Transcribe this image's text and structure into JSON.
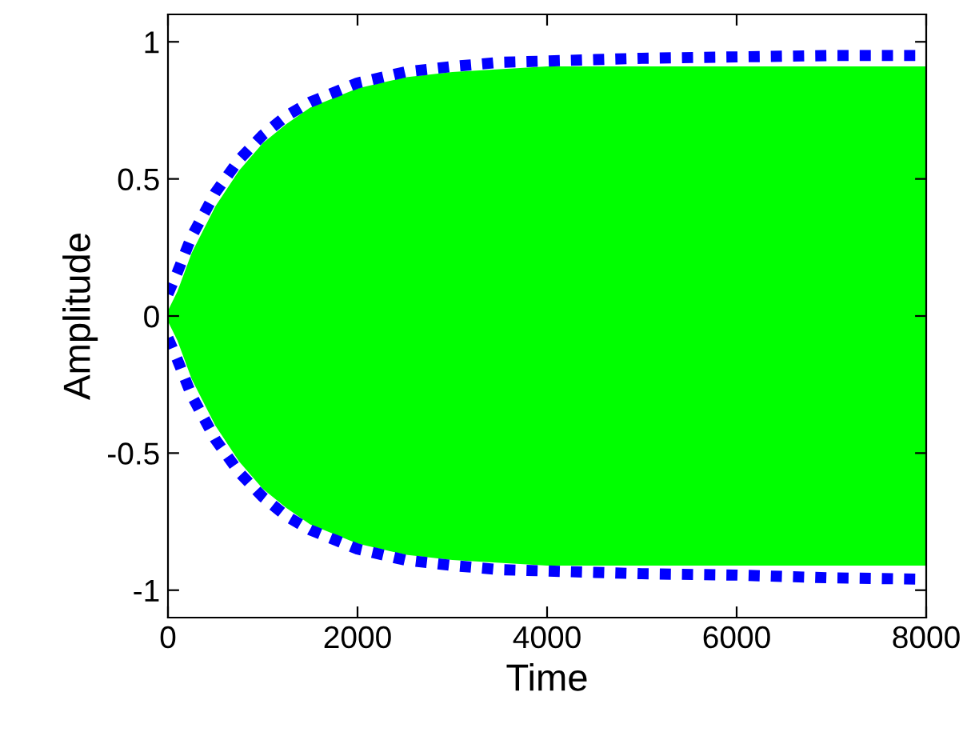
{
  "chart_data": {
    "type": "area",
    "xlabel": "Time",
    "ylabel": "Amplitude",
    "x": [
      0,
      100,
      250,
      500,
      750,
      1000,
      1250,
      1500,
      2000,
      2500,
      3000,
      3500,
      4000,
      4500,
      5000,
      6000,
      7000,
      8000
    ],
    "series": [
      {
        "color": "#00ff00",
        "values": [
          0.02,
          0.09,
          0.23,
          0.4,
          0.53,
          0.63,
          0.7,
          0.76,
          0.83,
          0.87,
          0.89,
          0.9,
          0.91,
          0.91,
          0.91,
          0.91,
          0.91,
          0.91
        ]
      },
      {
        "color": "#00ff00",
        "values": [
          -0.02,
          -0.09,
          -0.23,
          -0.4,
          -0.53,
          -0.63,
          -0.7,
          -0.76,
          -0.83,
          -0.87,
          -0.89,
          -0.9,
          -0.91,
          -0.91,
          -0.91,
          -0.91,
          -0.91,
          -0.91
        ]
      },
      {
        "type": "line",
        "color": "#0000ff",
        "line_style": "dotted",
        "values": [
          0.08,
          0.16,
          0.29,
          0.45,
          0.57,
          0.66,
          0.73,
          0.78,
          0.85,
          0.89,
          0.91,
          0.925,
          0.93,
          0.935,
          0.94,
          0.945,
          0.95,
          0.95
        ]
      },
      {
        "type": "line",
        "color": "#0000ff",
        "line_style": "dotted",
        "values": [
          -0.08,
          -0.16,
          -0.29,
          -0.45,
          -0.57,
          -0.66,
          -0.73,
          -0.78,
          -0.85,
          -0.89,
          -0.91,
          -0.925,
          -0.93,
          -0.935,
          -0.94,
          -0.945,
          -0.955,
          -0.96
        ]
      }
    ],
    "xlim": [
      0,
      8000
    ],
    "xticks": [
      0,
      2000,
      4000,
      6000,
      8000
    ],
    "ylim": [
      -1.1,
      1.1
    ],
    "yticks": [
      -1,
      -0.5,
      0,
      0.5,
      1
    ]
  }
}
